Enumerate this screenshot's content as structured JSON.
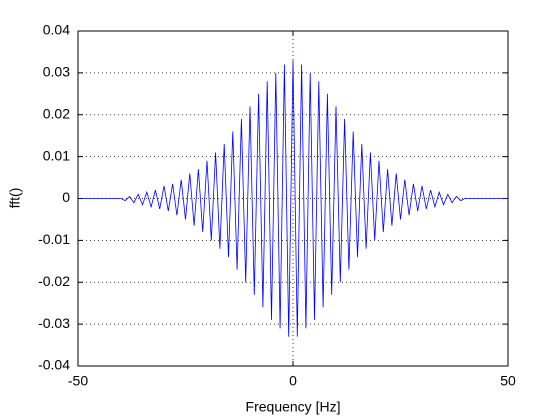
{
  "chart_data": {
    "type": "line",
    "xlabel": "Frequency [Hz]",
    "ylabel": "fft()",
    "x": [
      -50,
      -40,
      -39,
      -38,
      -37,
      -36,
      -35,
      -34,
      -33,
      -32,
      -31,
      -30,
      -29,
      -28,
      -27,
      -26,
      -25,
      -24,
      -23,
      -22,
      -21,
      -20,
      -19,
      -18,
      -17,
      -16,
      -15,
      -14,
      -13,
      -12,
      -11,
      -10,
      -9,
      -8,
      -7,
      -6,
      -5,
      -4,
      -3,
      -2,
      -1,
      0,
      1,
      2,
      3,
      4,
      5,
      6,
      7,
      8,
      9,
      10,
      11,
      12,
      13,
      14,
      15,
      16,
      17,
      18,
      19,
      20,
      21,
      22,
      23,
      24,
      25,
      26,
      27,
      28,
      29,
      30,
      31,
      32,
      33,
      34,
      35,
      36,
      37,
      38,
      39,
      40,
      50
    ],
    "series": [
      {
        "name": "fft",
        "color": "#0000ff",
        "values": [
          0,
          0,
          -0.0005,
          0.0005,
          -0.001,
          0.001,
          -0.0015,
          0.0015,
          -0.002,
          0.002,
          -0.0025,
          0.003,
          -0.003,
          0.0035,
          -0.004,
          0.0045,
          -0.005,
          0.006,
          -0.0065,
          0.007,
          -0.008,
          0.009,
          -0.01,
          0.011,
          -0.012,
          0.013,
          -0.014,
          0.016,
          -0.017,
          0.019,
          -0.02,
          0.022,
          -0.023,
          0.025,
          -0.026,
          0.028,
          -0.029,
          0.03,
          -0.031,
          0.032,
          -0.033,
          0.033,
          -0.033,
          0.032,
          -0.031,
          0.03,
          -0.029,
          0.028,
          -0.026,
          0.025,
          -0.023,
          0.022,
          -0.02,
          0.019,
          -0.017,
          0.016,
          -0.014,
          0.013,
          -0.012,
          0.011,
          -0.01,
          0.009,
          -0.008,
          0.007,
          -0.0065,
          0.006,
          -0.005,
          0.0045,
          -0.004,
          0.0035,
          -0.003,
          0.003,
          -0.0025,
          0.002,
          -0.002,
          0.0015,
          -0.0015,
          0.001,
          -0.001,
          0.0005,
          -0.0005,
          0,
          0
        ]
      }
    ],
    "xlim": [
      -50,
      50
    ],
    "xticks": [
      -50,
      0,
      50
    ],
    "ylim": [
      -0.04,
      0.04
    ],
    "yticks": [
      -0.04,
      -0.03,
      -0.02,
      -0.01,
      0,
      0.01,
      0.02,
      0.03,
      0.04
    ],
    "grid": true
  }
}
